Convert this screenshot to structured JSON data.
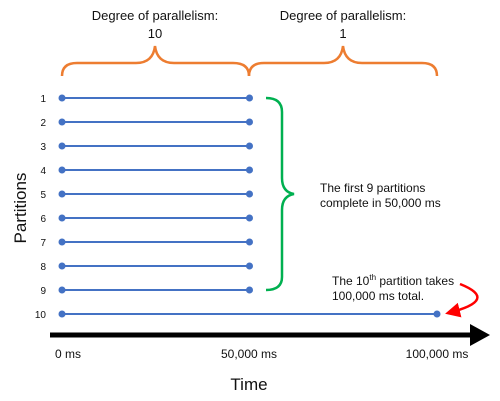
{
  "parallelism": [
    {
      "label": "Degree of parallelism:",
      "value": "10"
    },
    {
      "label": "Degree of parallelism:",
      "value": "1"
    }
  ],
  "y_axis_label": "Partitions",
  "x_axis_label": "Time",
  "partitions": [
    {
      "id": "1",
      "start_ms": 0,
      "end_ms": 50000
    },
    {
      "id": "2",
      "start_ms": 0,
      "end_ms": 50000
    },
    {
      "id": "3",
      "start_ms": 0,
      "end_ms": 50000
    },
    {
      "id": "4",
      "start_ms": 0,
      "end_ms": 50000
    },
    {
      "id": "5",
      "start_ms": 0,
      "end_ms": 50000
    },
    {
      "id": "6",
      "start_ms": 0,
      "end_ms": 50000
    },
    {
      "id": "7",
      "start_ms": 0,
      "end_ms": 50000
    },
    {
      "id": "8",
      "start_ms": 0,
      "end_ms": 50000
    },
    {
      "id": "9",
      "start_ms": 0,
      "end_ms": 50000
    },
    {
      "id": "10",
      "start_ms": 0,
      "end_ms": 100000
    }
  ],
  "time_ticks": [
    "0 ms",
    "50,000 ms",
    "100,000 ms"
  ],
  "annotation_first": {
    "line1": "The first 9 partitions",
    "line2": "complete in 50,000 ms"
  },
  "annotation_tenth": {
    "line1_prefix": "The 10",
    "line1_sup": "th",
    "line1_suffix": " partition takes",
    "line2": "100,000 ms total."
  },
  "colors": {
    "bar": "#4472c4",
    "dot": "#4472c4",
    "orange": "#ed7d31",
    "green": "#00b050",
    "red": "#ff0000",
    "axis": "#000000"
  }
}
